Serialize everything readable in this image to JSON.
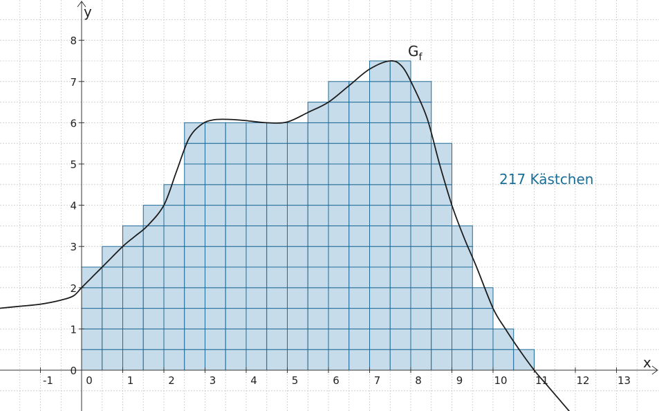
{
  "chart_data": {
    "type": "area",
    "xlabel": "x",
    "ylabel": "y",
    "xlim": [
      -2,
      13.9
    ],
    "ylim": [
      -1,
      8.75
    ],
    "x_ticks": [
      "-1",
      "0",
      "1",
      "2",
      "3",
      "4",
      "5",
      "6",
      "7",
      "8",
      "9",
      "10",
      "11",
      "12",
      "13"
    ],
    "x_tick_values": [
      -1,
      0,
      1,
      2,
      3,
      4,
      5,
      6,
      7,
      8,
      9,
      10,
      11,
      12,
      13
    ],
    "y_ticks": [
      "0",
      "1",
      "2",
      "3",
      "4",
      "5",
      "6",
      "7",
      "8"
    ],
    "y_tick_values": [
      0,
      1,
      2,
      3,
      4,
      5,
      6,
      7,
      8
    ],
    "grid": true,
    "grid_step": 0.5,
    "box_width": 0.5,
    "box_height": 0.5,
    "bars": {
      "x_start": [
        0,
        0.5,
        1,
        1.5,
        2,
        2.5,
        3,
        3.5,
        4,
        4.5,
        5,
        5.5,
        6,
        6.5,
        7,
        7.5,
        8,
        8.5,
        9,
        9.5,
        10,
        10.5
      ],
      "heights": [
        2.5,
        3,
        3.5,
        4,
        4.5,
        6,
        6,
        6,
        6,
        6,
        6,
        6.5,
        7,
        7,
        7.5,
        7.5,
        7,
        5.5,
        3.5,
        2,
        1,
        0.5
      ]
    },
    "curve": {
      "name": "G",
      "subscript": "f",
      "points": [
        [
          -2,
          1.5
        ],
        [
          -1.5,
          1.55
        ],
        [
          -1,
          1.6
        ],
        [
          -0.5,
          1.7
        ],
        [
          -0.2,
          1.8
        ],
        [
          0,
          2
        ],
        [
          0.3,
          2.3
        ],
        [
          0.6,
          2.6
        ],
        [
          1,
          3
        ],
        [
          1.3,
          3.25
        ],
        [
          1.6,
          3.5
        ],
        [
          2,
          4
        ],
        [
          2.3,
          4.8
        ],
        [
          2.6,
          5.6
        ],
        [
          2.9,
          5.95
        ],
        [
          3.2,
          6.07
        ],
        [
          3.6,
          6.08
        ],
        [
          4,
          6.05
        ],
        [
          4.5,
          6
        ],
        [
          5,
          6.02
        ],
        [
          5.5,
          6.25
        ],
        [
          6,
          6.5
        ],
        [
          6.5,
          6.9
        ],
        [
          7,
          7.3
        ],
        [
          7.5,
          7.5
        ],
        [
          7.8,
          7.35
        ],
        [
          8.1,
          6.8
        ],
        [
          8.4,
          6.1
        ],
        [
          8.7,
          5
        ],
        [
          9,
          4
        ],
        [
          9.3,
          3.2
        ],
        [
          9.6,
          2.5
        ],
        [
          10,
          1.5
        ],
        [
          10.3,
          1
        ],
        [
          10.6,
          0.55
        ],
        [
          11,
          0
        ],
        [
          11.3,
          -0.35
        ],
        [
          11.6,
          -0.7
        ],
        [
          11.9,
          -1.05
        ]
      ]
    },
    "annotation": {
      "text": "217 Kästchen",
      "color": "#1a6f99"
    },
    "colors": {
      "box_fill": "#c7dceb",
      "box_stroke": "#1d6a96",
      "curve": "#1c1c1c"
    }
  }
}
